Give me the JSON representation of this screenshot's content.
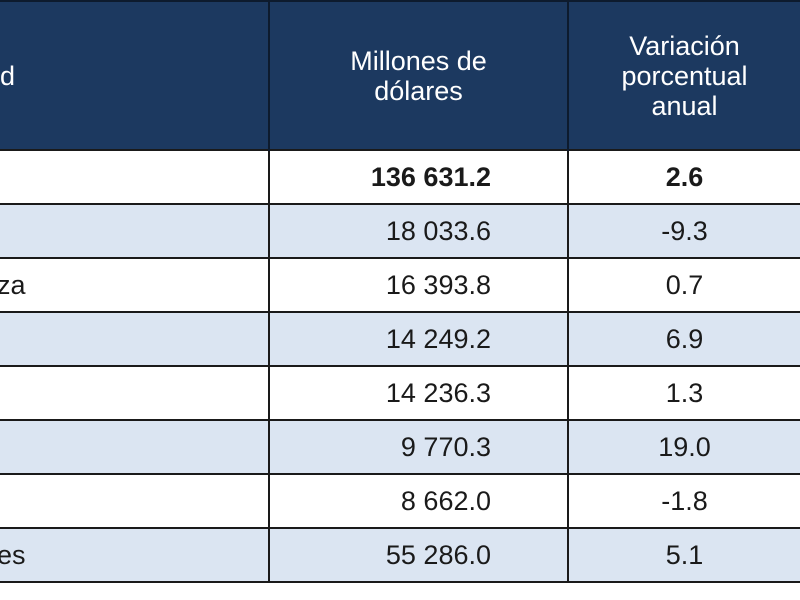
{
  "table": {
    "headers": {
      "concept": "d",
      "amount": "Millones de dólares",
      "change": "Variación porcentual anual"
    },
    "rows": [
      {
        "concept": "",
        "amount": "136 631.2",
        "change": "2.6",
        "bold": true
      },
      {
        "concept": "",
        "amount": "18 033.6",
        "change": "-9.3"
      },
      {
        "concept": "oza",
        "amount": "16 393.8",
        "change": "0.7"
      },
      {
        "concept": "",
        "amount": "14 249.2",
        "change": "6.9"
      },
      {
        "concept": "",
        "amount": "14 236.3",
        "change": "1.3"
      },
      {
        "concept": "",
        "amount": "9 770.3",
        "change": "19.0"
      },
      {
        "concept": "",
        "amount": "8 662.0",
        "change": "-1.8"
      },
      {
        "concept": "des",
        "amount": "55 286.0",
        "change": "5.1"
      }
    ]
  }
}
